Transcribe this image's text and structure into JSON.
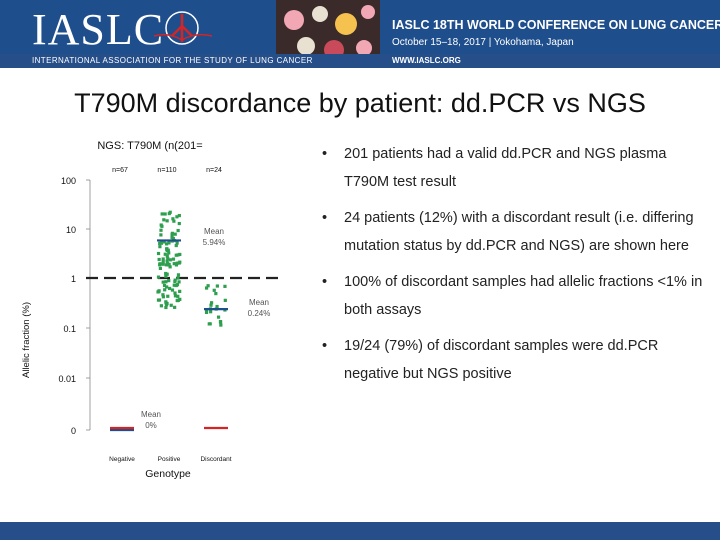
{
  "header": {
    "logo_text": "IASLC",
    "conference_title": "IASLC 18TH WORLD CONFERENCE ON LUNG CANCER",
    "conference_dates": "October 15–18, 2017 | Yokohama, Japan",
    "association_name": "INTERNATIONAL ASSOCIATION FOR THE STUDY OF LUNG CANCER",
    "website": "WWW.IASLC.ORG",
    "brand_color": "#1f4e8c"
  },
  "slide": {
    "title": "T790M discordance by patient: dd.PCR vs NGS"
  },
  "chart_data": {
    "type": "scatter",
    "title": "NGS: T790M (n(201=",
    "xlabel": "Genotype",
    "ylabel": "Allelic fraction (%)",
    "y_scale": "log",
    "y_ticks": [
      "100",
      "10",
      "1",
      "0.1",
      "0.01",
      "0"
    ],
    "categories": [
      "Negative",
      "Positive",
      "Discordant"
    ],
    "counts": [
      "n=67",
      "n=110",
      "n=24"
    ],
    "means": [
      {
        "group": "Negative",
        "label": "Mean\n0%",
        "value": 0
      },
      {
        "group": "Positive",
        "label": "Mean\n5.94%",
        "value": 5.94
      },
      {
        "group": "Discordant",
        "label": "Mean\n0.24%",
        "value": 0.24
      }
    ],
    "threshold_value": 1,
    "colors": {
      "negative": "#1f4e8c",
      "positive": "#2e9e4f",
      "discordant": "#2e9e4f",
      "zero_marker": "#d42424"
    }
  },
  "bullets": [
    "201 patients had a valid dd.PCR and NGS plasma T790M test result",
    "24 patients (12%) with a discordant result (i.e. differing mutation status by dd.PCR and NGS) are shown here",
    "100% of discordant samples had allelic fractions <1% in both assays",
    "19/24 (79%) of discordant samples were dd.PCR negative but NGS positive"
  ],
  "bullet_symbol": "•"
}
